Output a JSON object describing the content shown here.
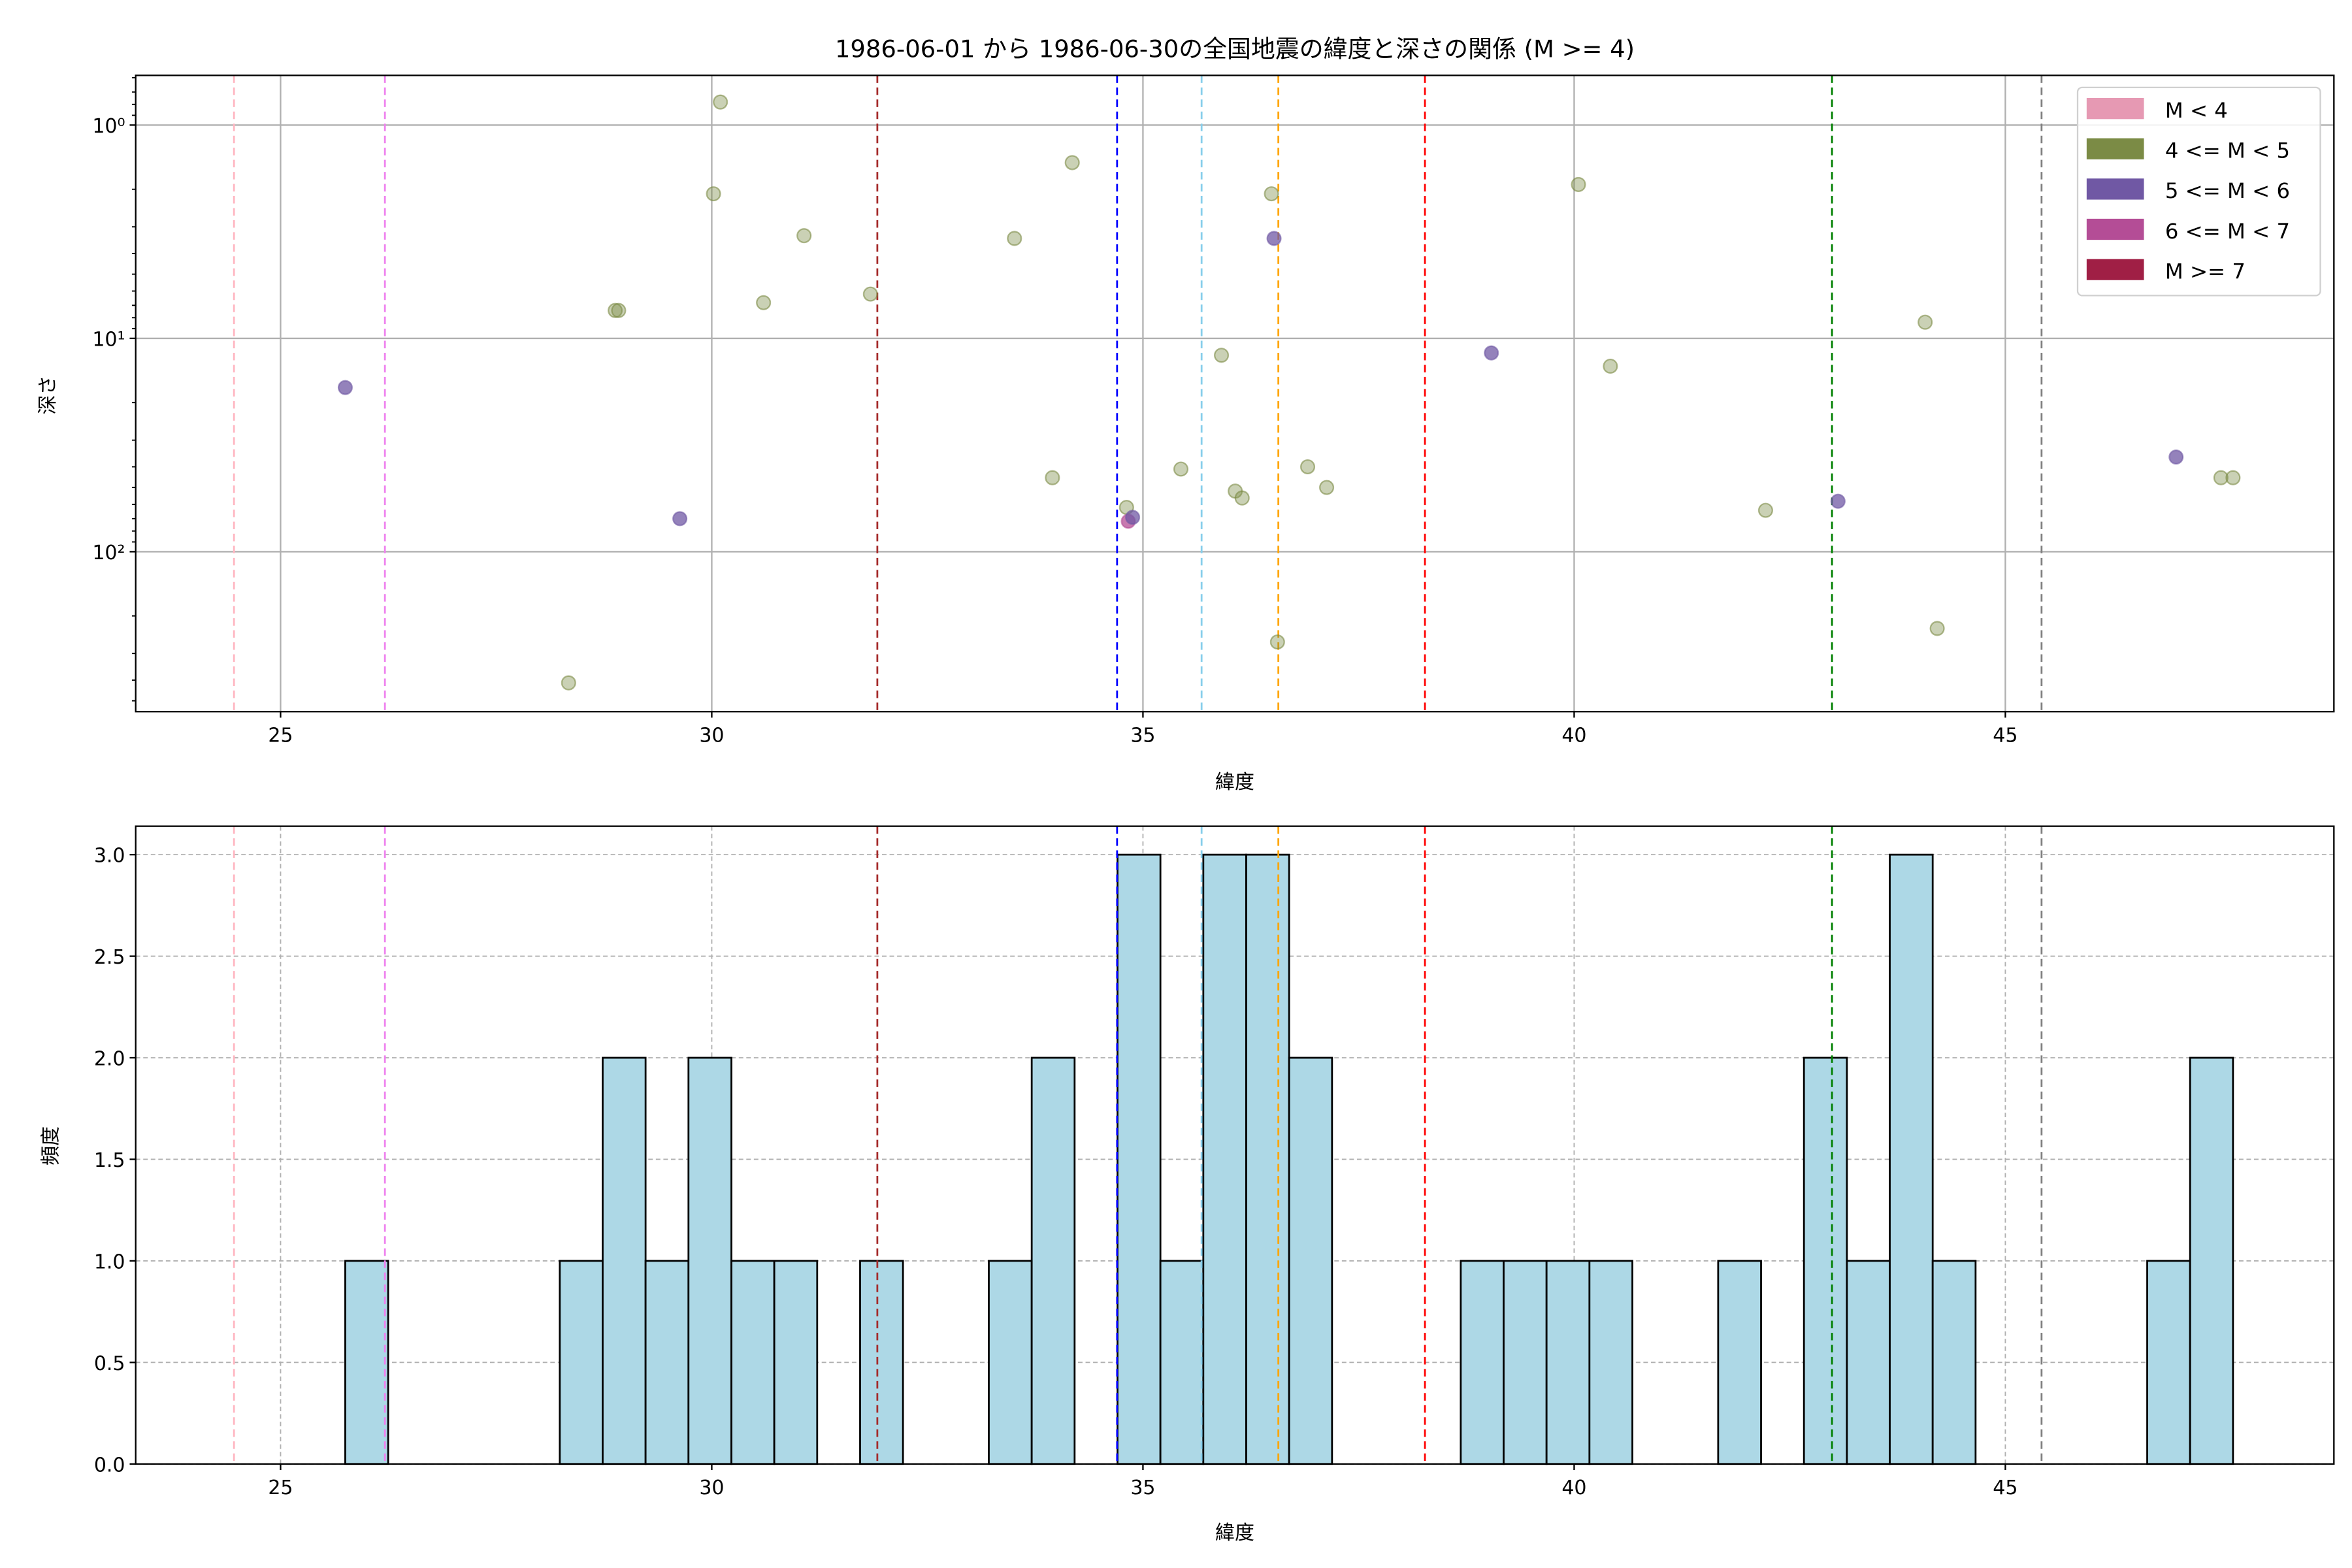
{
  "chart_data": [
    {
      "type": "scatter",
      "title": "1986-06-01 から 1986-06-30の全国地震の緯度と深さの関係 (M >= 4)",
      "xlabel": "緯度",
      "ylabel": "深さ",
      "xlim": [
        23.32,
        48.81
      ],
      "ylim": [
        562,
        0.585
      ],
      "yscale": "log",
      "y_inverted": true,
      "grid": true,
      "xticks": [
        25,
        30,
        35,
        40,
        45
      ],
      "xtick_labels": [
        "25",
        "30",
        "35",
        "40",
        "45"
      ],
      "yticks": [
        1,
        10,
        100
      ],
      "ytick_labels": [
        "10⁰",
        "10¹",
        "10²"
      ],
      "legend": {
        "placement": "top-right",
        "entries": [
          {
            "label": "M < 4",
            "color": "#e699b3"
          },
          {
            "label": "4 <= M < 5",
            "color": "#7b8b45"
          },
          {
            "label": "5 <= M < 6",
            "color": "#7058a4"
          },
          {
            "label": "6 <= M < 7",
            "color": "#b44d96"
          },
          {
            "label": "M >= 7",
            "color": "#a01f45"
          }
        ]
      },
      "points": [
        {
          "lat": 25.75,
          "depth": 17,
          "class": 2
        },
        {
          "lat": 29.63,
          "depth": 70,
          "class": 2
        },
        {
          "lat": 28.34,
          "depth": 412,
          "class": 1
        },
        {
          "lat": 28.88,
          "depth": 7.4,
          "class": 1
        },
        {
          "lat": 28.92,
          "depth": 7.4,
          "class": 1
        },
        {
          "lat": 30.1,
          "depth": 0.78,
          "class": 1
        },
        {
          "lat": 30.02,
          "depth": 2.1,
          "class": 1
        },
        {
          "lat": 30.6,
          "depth": 6.8,
          "class": 1
        },
        {
          "lat": 31.07,
          "depth": 3.3,
          "class": 1
        },
        {
          "lat": 31.84,
          "depth": 6.2,
          "class": 1
        },
        {
          "lat": 33.51,
          "depth": 3.4,
          "class": 1
        },
        {
          "lat": 33.95,
          "depth": 45,
          "class": 1
        },
        {
          "lat": 34.18,
          "depth": 1.5,
          "class": 1
        },
        {
          "lat": 34.81,
          "depth": 62,
          "class": 1
        },
        {
          "lat": 34.83,
          "depth": 72,
          "class": 3
        },
        {
          "lat": 34.88,
          "depth": 69,
          "class": 2
        },
        {
          "lat": 35.44,
          "depth": 41,
          "class": 1
        },
        {
          "lat": 35.91,
          "depth": 12,
          "class": 1
        },
        {
          "lat": 36.07,
          "depth": 52,
          "class": 1
        },
        {
          "lat": 36.15,
          "depth": 56,
          "class": 1
        },
        {
          "lat": 36.49,
          "depth": 2.1,
          "class": 1
        },
        {
          "lat": 36.52,
          "depth": 3.4,
          "class": 2
        },
        {
          "lat": 36.56,
          "depth": 265,
          "class": 1
        },
        {
          "lat": 36.91,
          "depth": 40,
          "class": 1
        },
        {
          "lat": 37.13,
          "depth": 50,
          "class": 1
        },
        {
          "lat": 39.04,
          "depth": 11.7,
          "class": 2
        },
        {
          "lat": 40.05,
          "depth": 1.9,
          "class": 1
        },
        {
          "lat": 40.42,
          "depth": 13.5,
          "class": 1
        },
        {
          "lat": 42.22,
          "depth": 64,
          "class": 1
        },
        {
          "lat": 43.06,
          "depth": 58,
          "class": 2
        },
        {
          "lat": 44.07,
          "depth": 8.4,
          "class": 1
        },
        {
          "lat": 44.21,
          "depth": 229,
          "class": 1
        },
        {
          "lat": 46.98,
          "depth": 36,
          "class": 2
        },
        {
          "lat": 47.5,
          "depth": 45,
          "class": 1
        },
        {
          "lat": 47.64,
          "depth": 45,
          "class": 1
        }
      ],
      "vlines": [
        {
          "x": 24.46,
          "color": "#ffb6c1"
        },
        {
          "x": 26.21,
          "color": "#ee82ee"
        },
        {
          "x": 31.92,
          "color": "#a52a2a"
        },
        {
          "x": 34.7,
          "color": "#0000ff"
        },
        {
          "x": 35.68,
          "color": "#87ceeb"
        },
        {
          "x": 36.57,
          "color": "#ffa500"
        },
        {
          "x": 38.27,
          "color": "#ff0000"
        },
        {
          "x": 42.99,
          "color": "#008000"
        },
        {
          "x": 45.42,
          "color": "#808080"
        }
      ]
    },
    {
      "type": "bar",
      "subtype": "histogram",
      "xlabel": "緯度",
      "ylabel": "頻度",
      "xlim": [
        23.32,
        48.81
      ],
      "ylim": [
        0,
        3.14
      ],
      "grid": true,
      "bin_start": 25.75,
      "bin_width": 0.4975,
      "counts": [
        1,
        0,
        0,
        0,
        0,
        1,
        2,
        1,
        2,
        1,
        1,
        0,
        1,
        0,
        0,
        1,
        2,
        0,
        3,
        1,
        3,
        3,
        2,
        0,
        0,
        0,
        1,
        1,
        1,
        1,
        0,
        0,
        1,
        0,
        2,
        1,
        3,
        1,
        0,
        0,
        0,
        0,
        1,
        2
      ],
      "bar_color": "#add8e6",
      "edge_color": "#000000",
      "xticks": [
        25,
        30,
        35,
        40,
        45
      ],
      "xtick_labels": [
        "25",
        "30",
        "35",
        "40",
        "45"
      ],
      "yticks": [
        0,
        0.5,
        1,
        1.5,
        2,
        2.5,
        3
      ],
      "ytick_labels": [
        "0.0",
        "0.5",
        "1.0",
        "1.5",
        "2.0",
        "2.5",
        "3.0"
      ]
    }
  ]
}
